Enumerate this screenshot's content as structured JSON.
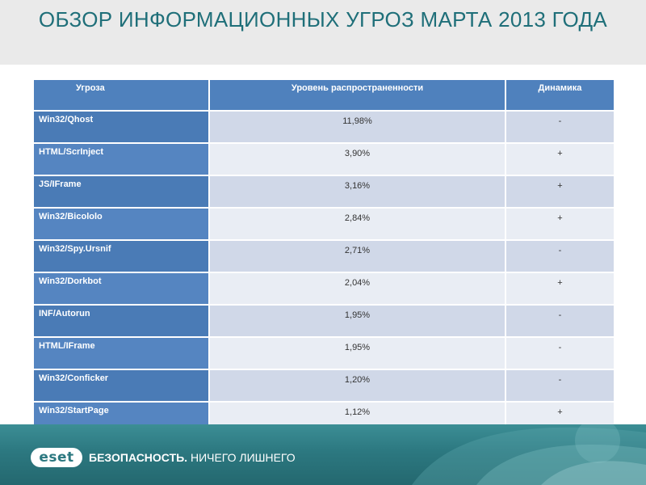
{
  "title": "ОБЗОР ИНФОРМАЦИОННЫХ УГРОЗ МАРТА 2013 ГОДА",
  "table": {
    "headers": [
      "Угроза",
      "Уровень распространенности",
      "Динамика"
    ],
    "rows": [
      {
        "threat": "Win32/Qhost",
        "level": "11,98%",
        "dynamics": "-"
      },
      {
        "threat": "HTML/ScrInject",
        "level": "3,90%",
        "dynamics": "+"
      },
      {
        "threat": "JS/IFrame",
        "level": "3,16%",
        "dynamics": "+"
      },
      {
        "threat": "Win32/Bicololo",
        "level": "2,84%",
        "dynamics": "+"
      },
      {
        "threat": "Win32/Spy.Ursnif",
        "level": "2,71%",
        "dynamics": "-"
      },
      {
        "threat": "Win32/Dorkbot",
        "level": "2,04%",
        "dynamics": "+"
      },
      {
        "threat": "INF/Autorun",
        "level": "1,95%",
        "dynamics": "-"
      },
      {
        "threat": "HTML/IFrame",
        "level": "1,95%",
        "dynamics": "-"
      },
      {
        "threat": "Win32/Conficker",
        "level": "1,20%",
        "dynamics": "-"
      },
      {
        "threat": "Win32/StartPage",
        "level": "1,12%",
        "dynamics": "+"
      }
    ]
  },
  "footer": {
    "logo_text": "eset",
    "slogan_bold": "БЕЗОПАСНОСТЬ.",
    "slogan_rest": " НИЧЕГО ЛИШНЕГО"
  },
  "colors": {
    "title": "#1f6f79",
    "header_bg": "#4f81bd",
    "row_light": "#e9edf4",
    "row_dark": "#d0d8e8",
    "footer_bg": "#2c7880"
  }
}
